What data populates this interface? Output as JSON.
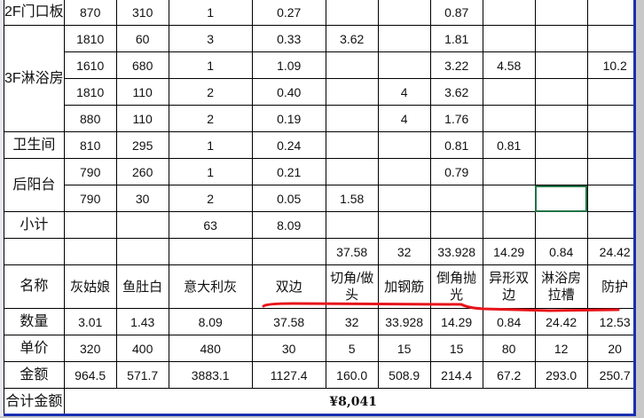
{
  "colors": {
    "grid": "#000000",
    "frame": "#1a2fb0",
    "selection": "#217346",
    "annotation": "#e8141b"
  },
  "rows": [
    {
      "label": "2F门口板",
      "cells": [
        "870",
        "310",
        "1",
        "0.27",
        "",
        "",
        "0.87",
        "",
        "",
        ""
      ]
    },
    {
      "label": "3F淋浴房",
      "cells": [
        "1810",
        "60",
        "3",
        "0.33",
        "3.62",
        "",
        "1.81",
        "",
        "",
        ""
      ]
    },
    {
      "cells": [
        "1610",
        "680",
        "1",
        "1.09",
        "",
        "",
        "3.22",
        "4.58",
        "",
        "10.2"
      ]
    },
    {
      "cells": [
        "1810",
        "110",
        "2",
        "0.40",
        "",
        "4",
        "3.62",
        "",
        "",
        ""
      ]
    },
    {
      "cells": [
        "880",
        "110",
        "2",
        "0.19",
        "",
        "4",
        "1.76",
        "",
        "",
        ""
      ]
    },
    {
      "label": "卫生间",
      "cells": [
        "810",
        "295",
        "1",
        "0.24",
        "",
        "",
        "0.81",
        "0.81",
        "",
        ""
      ]
    },
    {
      "label": "后阳台",
      "cells": [
        "790",
        "260",
        "1",
        "0.21",
        "",
        "",
        "0.79",
        "",
        "",
        ""
      ]
    },
    {
      "cells": [
        "790",
        "30",
        "2",
        "0.05",
        "1.58",
        "",
        "",
        "",
        "",
        ""
      ]
    }
  ],
  "subtotal": {
    "label": "小计",
    "cells": [
      "",
      "",
      "63",
      "8.09",
      "",
      "",
      "",
      "",
      "",
      ""
    ]
  },
  "totals_row": {
    "cells": [
      "",
      "",
      "",
      "",
      "37.58",
      "32",
      "33.928",
      "14.29",
      "0.84",
      "24.42"
    ]
  },
  "summary": {
    "header": {
      "label": "名称",
      "cells": [
        "灰姑娘",
        "鱼肚白",
        "意大利灰",
        "双边",
        "切角/做头",
        "加钢筋",
        "倒角抛光",
        "异形双边",
        "淋浴房拉槽",
        "防护"
      ]
    },
    "quantity": {
      "label": "数量",
      "cells": [
        "3.01",
        "1.43",
        "8.09",
        "37.58",
        "32",
        "33.928",
        "14.29",
        "0.84",
        "24.42",
        "12.53"
      ]
    },
    "unit_price": {
      "label": "单价",
      "cells": [
        "320",
        "400",
        "480",
        "30",
        "5",
        "15",
        "15",
        "80",
        "12",
        "20"
      ]
    },
    "amount": {
      "label": "金额",
      "cells": [
        "964.5",
        "571.7",
        "3883.1",
        "1127.4",
        "160.0",
        "508.9",
        "214.4",
        "67.2",
        "293.0",
        "250.7"
      ]
    }
  },
  "grand_total": {
    "label": "合计金额",
    "value": "¥8,041"
  }
}
